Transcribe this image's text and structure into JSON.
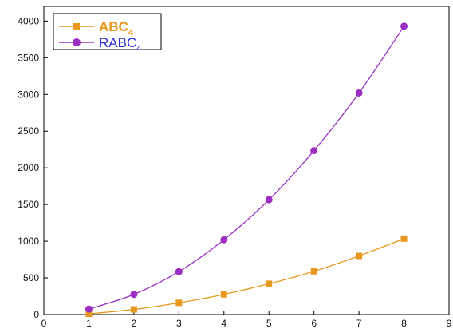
{
  "chart_data": {
    "type": "line",
    "title": "",
    "xlabel": "",
    "ylabel": "",
    "xlim": [
      0,
      9
    ],
    "ylim": [
      0,
      4200
    ],
    "x_ticks": [
      0,
      1,
      2,
      3,
      4,
      5,
      6,
      7,
      8,
      9
    ],
    "y_ticks": [
      0,
      500,
      1000,
      1500,
      2000,
      2500,
      3000,
      3500,
      4000
    ],
    "grid": false,
    "legend_position": "top-left",
    "series": [
      {
        "name": "ABC",
        "name_subscript": "4",
        "color": "#e8981e",
        "label_color": "#e8981e",
        "marker": "square",
        "x": [
          1,
          2,
          3,
          4,
          5,
          6,
          7,
          8
        ],
        "y": [
          10,
          70,
          160,
          275,
          420,
          590,
          800,
          1035
        ]
      },
      {
        "name": "RABC",
        "name_subscript": "4",
        "color": "#9b2fc1",
        "label_color": "#2a2fd6",
        "marker": "circle",
        "x": [
          1,
          2,
          3,
          4,
          5,
          6,
          7,
          8
        ],
        "y": [
          75,
          275,
          585,
          1020,
          1565,
          2235,
          3020,
          3930
        ]
      }
    ]
  }
}
